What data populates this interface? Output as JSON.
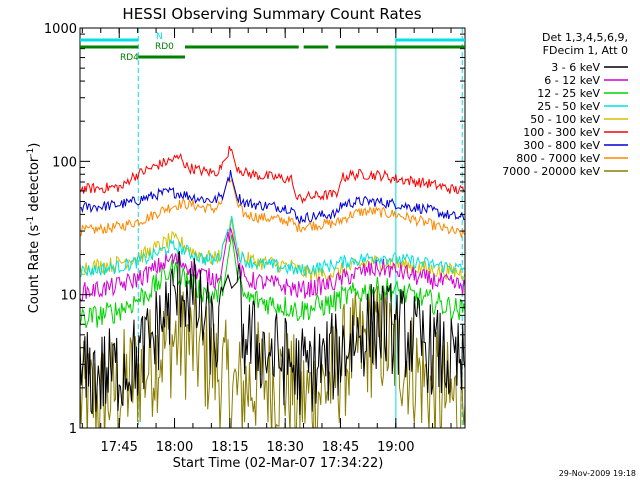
{
  "chart_data": {
    "type": "line",
    "title": "HESSI Observing Summary Count Rates",
    "xlabel": "Start Time (02-Mar-07 17:34:22)",
    "ylabel_main": "Count Rate (s",
    "ylabel_sup1": "-1",
    "ylabel_mid": " detector",
    "ylabel_sup2": "-1",
    "ylabel_end": ")",
    "x_range_min": [
      17.5728,
      19.3125
    ],
    "y_scale": "log",
    "ylim": [
      1,
      1000
    ],
    "x_ticks": [
      {
        "label": "17:45",
        "min": 17.75
      },
      {
        "label": "18:00",
        "min": 18.0
      },
      {
        "label": "18:15",
        "min": 18.25
      },
      {
        "label": "18:30",
        "min": 18.5
      },
      {
        "label": "18:45",
        "min": 18.75
      },
      {
        "label": "19:00",
        "min": 19.0
      }
    ],
    "y_ticks": [
      {
        "label": "1",
        "value": 1
      },
      {
        "label": "10",
        "value": 10
      },
      {
        "label": "100",
        "value": 100
      },
      {
        "label": "1000",
        "value": 1000
      }
    ],
    "legend": {
      "placement": "right",
      "header": [
        "Det 1,3,4,5,6,9,",
        "FDecim 1, Att 0"
      ]
    },
    "series": [
      {
        "name": "3 - 6 keV",
        "color": "#000000",
        "x": [
          17.5728,
          17.6667,
          17.7333,
          17.8,
          17.8667,
          17.9333,
          17.9833,
          18.0333,
          18.0833,
          18.1333,
          18.1833,
          18.2167,
          18.2417,
          18.2583,
          18.2833,
          18.3167,
          18.3833,
          18.45,
          18.5,
          18.5333,
          18.55,
          18.6,
          18.65,
          18.7,
          18.7333,
          18.75,
          18.8,
          18.85,
          18.9,
          18.95,
          18.9667,
          19.0,
          19.05,
          19.1,
          19.15,
          19.2,
          19.25,
          19.3125
        ],
        "y": [
          2.4,
          2.5,
          2.7,
          3.0,
          3.8,
          6.0,
          8.5,
          12,
          9,
          6.5,
          4.5,
          6,
          14,
          22,
          9,
          4.8,
          4.0,
          3.5,
          3.2,
          3.0,
          2.6,
          2.8,
          3.0,
          3.2,
          3.5,
          3.8,
          4.5,
          5.2,
          5.8,
          6.0,
          5.8,
          5.5,
          5.0,
          4.5,
          4.0,
          3.5,
          3.0,
          2.8
        ]
      },
      {
        "name": "6 - 12 keV",
        "color": "#d400d4",
        "x": [
          17.5728,
          17.6667,
          17.7333,
          17.8,
          17.8667,
          17.9333,
          17.9833,
          18.0333,
          18.0833,
          18.1333,
          18.1833,
          18.2167,
          18.2417,
          18.2583,
          18.2833,
          18.3167,
          18.3833,
          18.45,
          18.5,
          18.5333,
          18.55,
          18.6,
          18.65,
          18.7,
          18.7333,
          18.75,
          18.8,
          18.85,
          18.9,
          18.95,
          18.9667,
          19.0,
          19.05,
          19.1,
          19.15,
          19.2,
          19.25,
          19.3125
        ],
        "y": [
          10.5,
          11,
          11.5,
          12.5,
          14,
          16.5,
          18.5,
          17.5,
          15.5,
          14,
          13,
          16,
          27,
          33,
          17,
          13,
          12.5,
          12,
          11.5,
          11.2,
          10.8,
          11,
          11.5,
          12,
          12.5,
          13,
          14,
          15,
          15.5,
          15.8,
          15.5,
          15,
          14.5,
          13.5,
          13,
          12.5,
          12,
          11.5
        ]
      },
      {
        "name": "12 - 25 keV",
        "color": "#00d400",
        "x": [
          17.5728,
          17.6667,
          17.7333,
          17.8,
          17.8667,
          17.9333,
          17.9833,
          18.0333,
          18.0833,
          18.1333,
          18.1833,
          18.2167,
          18.2417,
          18.2583,
          18.2833,
          18.3167,
          18.3833,
          18.45,
          18.5,
          18.5333,
          18.55,
          18.6,
          18.65,
          18.7,
          18.7333,
          18.75,
          18.8,
          18.85,
          18.9,
          18.95,
          18.9667,
          19.0,
          19.05,
          19.1,
          19.15,
          19.2,
          19.25,
          19.3125
        ],
        "y": [
          6.5,
          7,
          7.5,
          8.5,
          10,
          12.5,
          15.5,
          14,
          12,
          10.5,
          9.5,
          12,
          22,
          29,
          13,
          9.5,
          9,
          8.5,
          8.2,
          8.0,
          7.5,
          7.8,
          8.2,
          8.5,
          9,
          9.5,
          10,
          10.5,
          11,
          11.2,
          11,
          10.5,
          10,
          9.5,
          9,
          8.5,
          8,
          7.5
        ]
      },
      {
        "name": "25 - 50 keV",
        "color": "#00e0e0",
        "x": [
          17.5728,
          17.6667,
          17.7333,
          17.8,
          17.8667,
          17.9333,
          17.9833,
          18.0333,
          18.0833,
          18.1333,
          18.1833,
          18.2167,
          18.2417,
          18.2583,
          18.2833,
          18.3167,
          18.3833,
          18.45,
          18.5,
          18.5333,
          18.55,
          18.6,
          18.65,
          18.7,
          18.7333,
          18.75,
          18.8,
          18.85,
          18.9,
          18.95,
          18.9667,
          19.0,
          19.05,
          19.1,
          19.15,
          19.2,
          19.25,
          19.3125
        ],
        "y": [
          15,
          15.5,
          16,
          17,
          18.5,
          21,
          23,
          22,
          20,
          18.5,
          18,
          21,
          32,
          38,
          21,
          18,
          17,
          16.5,
          16,
          15.5,
          15,
          15.5,
          16,
          16.5,
          17,
          17.5,
          18,
          18.5,
          19,
          19,
          18.8,
          18.5,
          18,
          17.5,
          17,
          16.5,
          16,
          15.5
        ]
      },
      {
        "name": "50 - 100 keV",
        "color": "#d4c000",
        "x": [
          17.5728,
          17.6667,
          17.7333,
          17.8,
          17.8667,
          17.9333,
          17.9833,
          18.0333,
          18.0833,
          18.1333,
          18.1833,
          18.2167,
          18.2417,
          18.2583,
          18.2833,
          18.3167,
          18.3833,
          18.45,
          18.5,
          18.5333,
          18.55,
          18.6,
          18.65,
          18.7,
          18.7333,
          18.75,
          18.8,
          18.85,
          18.9,
          18.95,
          18.9667,
          19.0,
          19.05,
          19.1,
          19.15,
          19.2,
          19.25,
          19.3125
        ],
        "y": [
          16,
          16.5,
          17,
          18.5,
          20,
          23,
          26,
          24,
          21,
          19.5,
          18.5,
          21,
          30,
          34,
          21,
          18.5,
          17.5,
          17,
          16.5,
          16,
          15.5,
          14.5,
          14,
          14.5,
          14.5,
          15,
          16,
          17,
          17.5,
          17.5,
          17.5,
          17,
          16.5,
          16,
          15.5,
          15,
          15,
          14.5
        ]
      },
      {
        "name": "100 - 300 keV",
        "color": "#ff0000",
        "x": [
          17.5728,
          17.6667,
          17.7333,
          17.7667,
          17.8,
          17.8667,
          17.9333,
          17.9833,
          18.0333,
          18.05,
          18.0833,
          18.1333,
          18.1833,
          18.2167,
          18.2417,
          18.2583,
          18.2833,
          18.3167,
          18.3833,
          18.45,
          18.5,
          18.5333,
          18.55,
          18.6,
          18.65,
          18.7,
          18.7333,
          18.75,
          18.8,
          18.85,
          18.9,
          18.95,
          18.9667,
          19.0,
          19.05,
          19.1,
          19.15,
          19.2,
          19.25,
          19.3125
        ],
        "y": [
          62,
          63,
          64,
          64,
          75,
          85,
          95,
          102,
          108,
          92,
          88,
          84,
          82,
          92,
          118,
          125,
          92,
          82,
          78,
          76,
          74,
          73,
          52,
          54,
          55,
          56,
          56,
          75,
          79,
          80,
          79,
          78,
          76,
          74,
          72,
          70,
          68,
          65,
          62,
          60
        ]
      },
      {
        "name": "300 - 800 keV",
        "color": "#0000d4",
        "x": [
          17.5728,
          17.6667,
          17.7333,
          17.8,
          17.8667,
          17.9333,
          17.9833,
          18.0333,
          18.0833,
          18.1333,
          18.1833,
          18.2167,
          18.2417,
          18.2583,
          18.2833,
          18.3167,
          18.3833,
          18.45,
          18.5,
          18.5333,
          18.55,
          18.6,
          18.65,
          18.7,
          18.7333,
          18.75,
          18.8,
          18.85,
          18.9,
          18.95,
          18.9667,
          19.0,
          19.05,
          19.1,
          19.15,
          19.2,
          19.25,
          19.3125
        ],
        "y": [
          45,
          46,
          47,
          49,
          53,
          57,
          59,
          57,
          54,
          52,
          51,
          56,
          75,
          82,
          55,
          49,
          47,
          46,
          45,
          44,
          37,
          38,
          39,
          40,
          40,
          47,
          49,
          50,
          50,
          49,
          48.5,
          48,
          46,
          45,
          43,
          41,
          39,
          37
        ]
      },
      {
        "name": "800 - 7000 keV",
        "color": "#ff8800",
        "x": [
          17.5728,
          17.6667,
          17.7333,
          17.8,
          17.8667,
          17.9333,
          17.9833,
          18.0333,
          18.0833,
          18.1333,
          18.1833,
          18.2167,
          18.2417,
          18.2583,
          18.2833,
          18.3167,
          18.3833,
          18.45,
          18.5,
          18.5333,
          18.55,
          18.6,
          18.65,
          18.7,
          18.7333,
          18.75,
          18.8,
          18.85,
          18.9,
          18.95,
          18.9667,
          19.0,
          19.05,
          19.1,
          19.15,
          19.2,
          19.25,
          19.3125
        ],
        "y": [
          30,
          31,
          32,
          34,
          37,
          42,
          46,
          48,
          47,
          45,
          44,
          50,
          68,
          74,
          46,
          40,
          38,
          37,
          36,
          35,
          32,
          33,
          33.5,
          34,
          34.5,
          36,
          40,
          42,
          42,
          41,
          40.5,
          40,
          38,
          36,
          34,
          32,
          30,
          28
        ]
      },
      {
        "name": "7000 - 20000 keV",
        "color": "#8a7d00",
        "x": [
          17.5728,
          17.6667,
          17.7333,
          17.8,
          17.8667,
          17.9333,
          17.9833,
          18.0333,
          18.0833,
          18.1333,
          18.1833,
          18.2167,
          18.2417,
          18.2583,
          18.2833,
          18.3167,
          18.3833,
          18.45,
          18.5,
          18.5333,
          18.55,
          18.6,
          18.65,
          18.7,
          18.7333,
          18.75,
          18.8,
          18.85,
          18.9,
          18.95,
          18.9667,
          19.0,
          19.05,
          19.1,
          19.15,
          19.2,
          19.25,
          19.3125
        ],
        "y": [
          1.6,
          1.7,
          1.9,
          2.2,
          2.8,
          3.8,
          4.5,
          4.6,
          4.2,
          3.5,
          2.8,
          2.5,
          2.2,
          2.0,
          1.8,
          2.0,
          2.4,
          2.3,
          2.2,
          2.0,
          1.6,
          1.7,
          1.9,
          2.2,
          2.5,
          3.0,
          3.6,
          4.2,
          4.6,
          4.5,
          4.2,
          3.8,
          3.2,
          2.6,
          2.1,
          1.8,
          1.6,
          1.5
        ]
      }
    ],
    "state_bars": [
      {
        "label": "N",
        "color": "#00e0e0",
        "segments": [
          [
            17.5728,
            17.8361
          ],
          [
            19.0,
            19.3125
          ]
        ]
      },
      {
        "label": "RD0",
        "color": "#008000",
        "segments": [
          [
            17.5728,
            17.8361
          ],
          [
            18.0472,
            18.5611
          ],
          [
            18.5833,
            18.6944
          ],
          [
            18.7278,
            19.3125
          ]
        ]
      },
      {
        "label": "RD4",
        "color": "#008000",
        "segments": [
          [
            17.8361,
            18.0472
          ]
        ]
      }
    ],
    "vlines": [
      {
        "min": 17.8361,
        "color": "#00e0e0",
        "style": "dashed"
      },
      {
        "min": 19.0,
        "color": "#00e0e0",
        "style": "solid"
      },
      {
        "min": 19.3,
        "color": "#00e0e0",
        "style": "dashed"
      }
    ],
    "timestamp": "29-Nov-2009 19:18"
  }
}
